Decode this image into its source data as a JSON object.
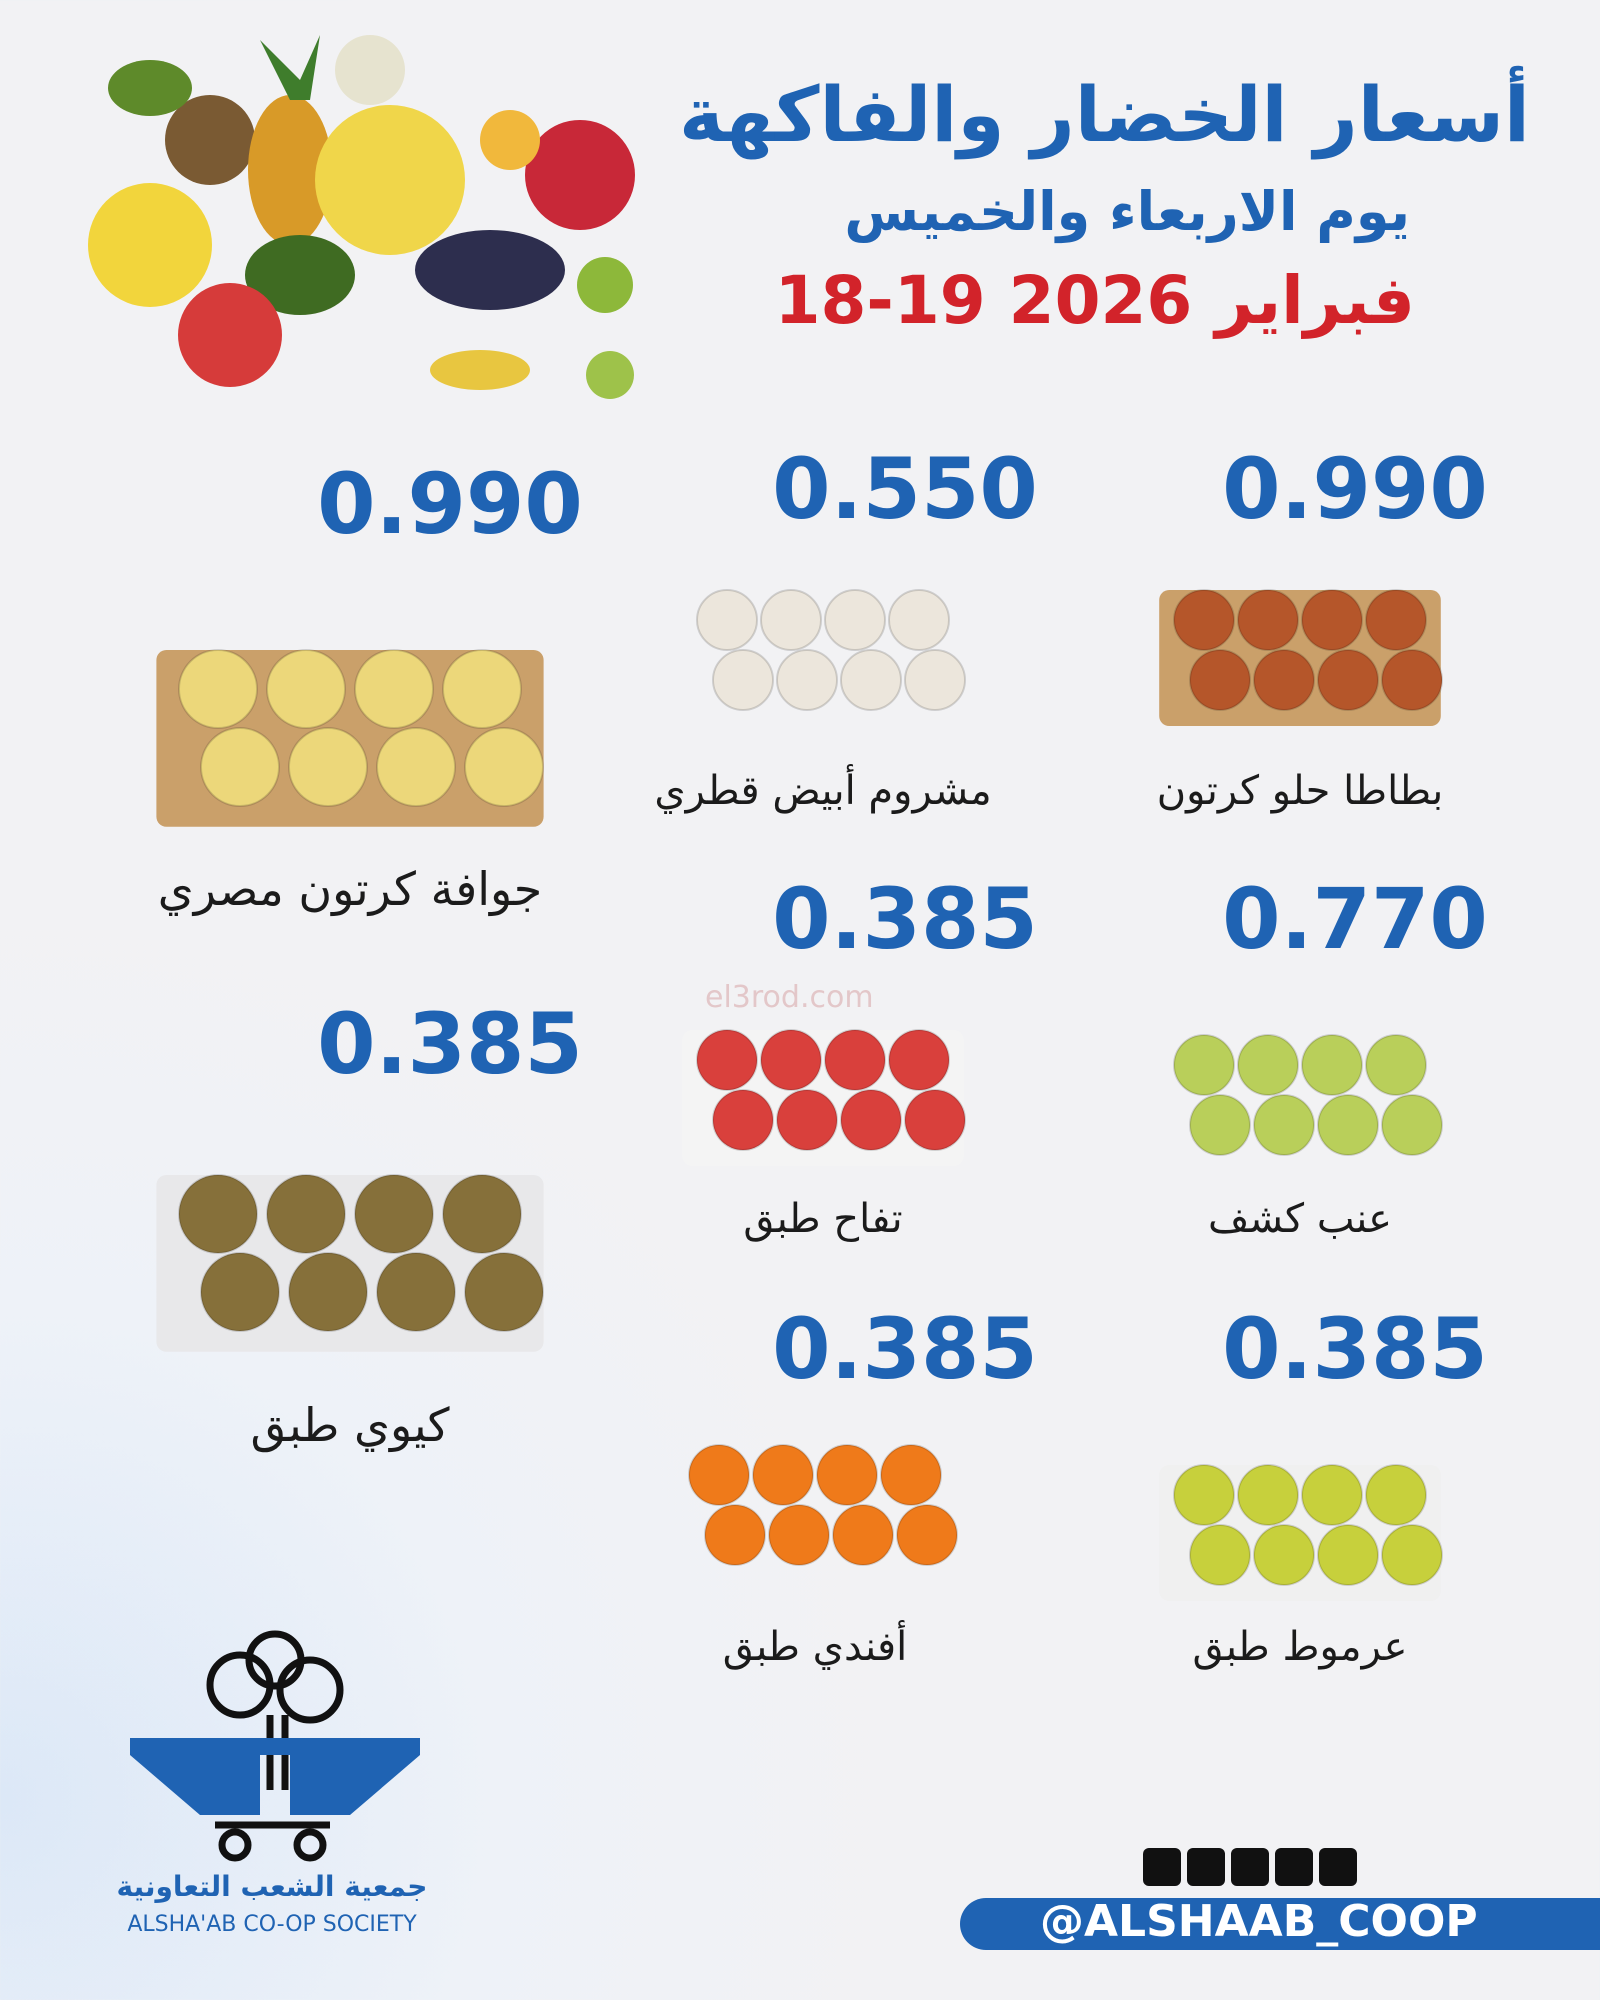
{
  "header": {
    "title": "أسعار الخضار والفاكهة",
    "subtitle": "يوم الاربعاء والخميس",
    "date": "18-19 فبراير 2026"
  },
  "products": [
    {
      "name": "بطاطا حلو كرتون",
      "price": "0.990"
    },
    {
      "name": "مشروم أبيض قطري",
      "price": "0.550"
    },
    {
      "name": "جوافة كرتون مصري",
      "price": "0.990"
    },
    {
      "name": "عنب كشف",
      "price": "0.770"
    },
    {
      "name": "تفاح طبق",
      "price": "0.385"
    },
    {
      "name": "كيوي طبق",
      "price": "0.385"
    },
    {
      "name": "عرموط طبق",
      "price": "0.385"
    },
    {
      "name": "أفندي طبق",
      "price": "0.385"
    }
  ],
  "watermark": "el3rod.com",
  "footer": {
    "logo_arabic": "جمعية الشعب التعاونية",
    "logo_english": "ALSHA'AB CO-OP SOCIETY",
    "handle": "@ALSHAAB_COOP"
  }
}
